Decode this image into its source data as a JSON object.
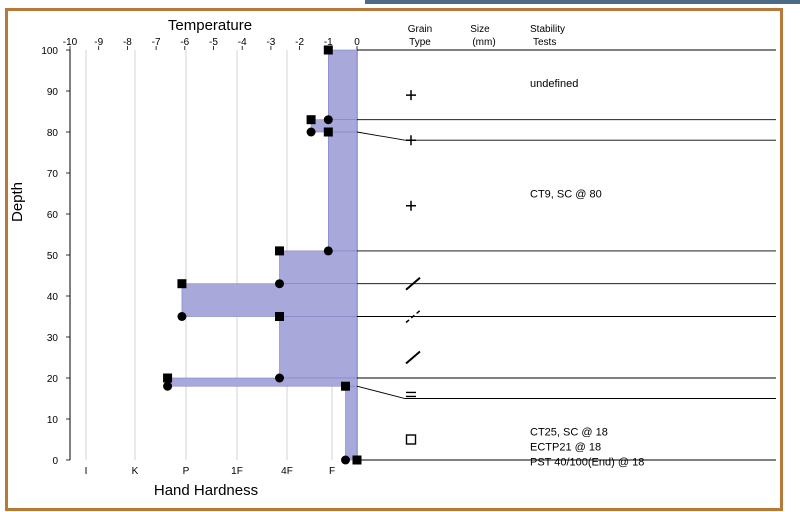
{
  "chart_data": {
    "type": "snow-profile",
    "top_axis_label": "Temperature",
    "top_ticks": [
      "-10",
      "-9",
      "-8",
      "-7",
      "-6",
      "-5",
      "-4",
      "-3",
      "-2",
      "-1",
      "0"
    ],
    "left_axis_label": "Depth",
    "depth_ticks": [
      "0",
      "10",
      "20",
      "30",
      "40",
      "50",
      "60",
      "70",
      "80",
      "90",
      "100"
    ],
    "depth_range": [
      0,
      100
    ],
    "bottom_axis_label": "Hand Hardness",
    "hardness_ticks": [
      "I",
      "K",
      "P",
      "1F",
      "4F",
      "F"
    ],
    "column_headers": {
      "grain": [
        "Grain",
        "Type"
      ],
      "size": [
        "Size",
        "(mm)"
      ],
      "stability": [
        "Stability",
        "Tests"
      ]
    },
    "hardness_profile": [
      {
        "top": 100,
        "bottom": 83,
        "hardness": -1
      },
      {
        "top": 83,
        "bottom": 80,
        "hardness": -1.6
      },
      {
        "top": 80,
        "bottom": 51,
        "hardness": -1
      },
      {
        "top": 51,
        "bottom": 43,
        "hardness": -2.7
      },
      {
        "top": 43,
        "bottom": 35,
        "hardness": -6.1
      },
      {
        "top": 35,
        "bottom": 20,
        "hardness": -2.7
      },
      {
        "top": 20,
        "bottom": 18,
        "hardness": -6.6
      },
      {
        "top": 18,
        "bottom": 0,
        "hardness": -0.4
      }
    ],
    "layer_boundaries": [
      {
        "left_depth": 83,
        "right_depth": 83
      },
      {
        "left_depth": 80,
        "right_depth": 78
      },
      {
        "left_depth": 51,
        "right_depth": 51
      },
      {
        "left_depth": 43,
        "right_depth": 43
      },
      {
        "left_depth": 35,
        "right_depth": 35
      },
      {
        "left_depth": 20,
        "right_depth": 20
      },
      {
        "left_depth": 18,
        "right_depth": 15
      },
      {
        "left_depth": 0,
        "right_depth": 0
      }
    ],
    "square_markers": [
      {
        "depth": 100,
        "value": -1
      },
      {
        "depth": 83,
        "value": -1.6
      },
      {
        "depth": 80,
        "value": -1
      },
      {
        "depth": 51,
        "value": -2.7
      },
      {
        "depth": 43,
        "value": -6.1
      },
      {
        "depth": 35,
        "value": -2.7
      },
      {
        "depth": 20,
        "value": -6.6
      },
      {
        "depth": 18,
        "value": -0.4
      },
      {
        "depth": 0,
        "value": 0
      }
    ],
    "circle_markers": [
      {
        "depth": 83,
        "value": -1
      },
      {
        "depth": 80,
        "value": -1.6
      },
      {
        "depth": 51,
        "value": -1
      },
      {
        "depth": 43,
        "value": -2.7
      },
      {
        "depth": 35,
        "value": -6.1
      },
      {
        "depth": 20,
        "value": -2.7
      },
      {
        "depth": 18,
        "value": -6.6
      },
      {
        "depth": 0,
        "value": -0.4
      }
    ],
    "grain_symbols": [
      {
        "depth": 89,
        "symbol": "plus"
      },
      {
        "depth": 78,
        "symbol": "plus"
      },
      {
        "depth": 62,
        "symbol": "plus"
      },
      {
        "depth": 43,
        "symbol": "slash"
      },
      {
        "depth": 35,
        "symbol": "dashed-slash"
      },
      {
        "depth": 25,
        "symbol": "slash"
      },
      {
        "depth": 16,
        "symbol": "double-bar"
      },
      {
        "depth": 5,
        "symbol": "open-square"
      }
    ],
    "stability_notes": [
      {
        "depth": 91,
        "lines": [
          "undefined"
        ]
      },
      {
        "depth": 64,
        "lines": [
          "CT9, SC @ 80"
        ]
      },
      {
        "depth": 6,
        "lines": [
          "CT25, SC @ 18",
          "ECTP21 @ 18",
          "PST 40/100(End) @ 18"
        ]
      }
    ],
    "colors": {
      "fill": "#a8a9da",
      "fill_edge": "#7e80c8",
      "frame": "#b8783a",
      "grid": "#c8c8c8"
    }
  }
}
